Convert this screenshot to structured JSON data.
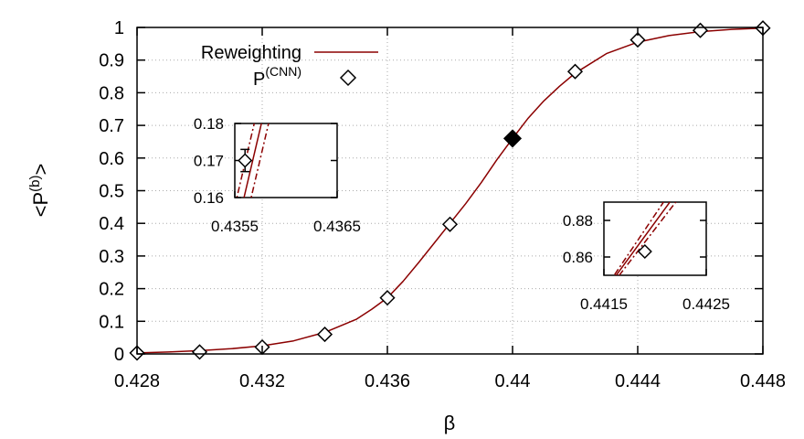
{
  "chart_data": {
    "type": "line",
    "title": "",
    "xlabel": "β",
    "ylabel_parts": {
      "lt": "<P",
      "sup": "(b)",
      "gt": ">"
    },
    "xlim": [
      0.428,
      0.448
    ],
    "ylim": [
      0,
      1
    ],
    "x_ticks": [
      {
        "value": 0.428,
        "label": "0.428"
      },
      {
        "value": 0.432,
        "label": "0.432"
      },
      {
        "value": 0.436,
        "label": "0.436"
      },
      {
        "value": 0.44,
        "label": "0.44"
      },
      {
        "value": 0.444,
        "label": "0.444"
      },
      {
        "value": 0.448,
        "label": "0.448"
      }
    ],
    "y_ticks": [
      {
        "value": 0,
        "label": "0"
      },
      {
        "value": 0.1,
        "label": "0.1"
      },
      {
        "value": 0.2,
        "label": "0.2"
      },
      {
        "value": 0.3,
        "label": "0.3"
      },
      {
        "value": 0.4,
        "label": "0.4"
      },
      {
        "value": 0.5,
        "label": "0.5"
      },
      {
        "value": 0.6,
        "label": "0.6"
      },
      {
        "value": 0.7,
        "label": "0.7"
      },
      {
        "value": 0.8,
        "label": "0.8"
      },
      {
        "value": 0.9,
        "label": "0.9"
      },
      {
        "value": 1,
        "label": "1"
      }
    ],
    "grid": true,
    "legend": {
      "placement": "top-left",
      "entries": [
        {
          "label": "Reweighting",
          "style": "line",
          "color": "#8b0000"
        },
        {
          "label_base": "P",
          "label_sup": "(CNN)",
          "style": "open-diamond",
          "color": "#000000"
        }
      ]
    },
    "series": [
      {
        "name": "Reweighting",
        "kind": "curve",
        "color": "#8b0000",
        "x": [
          0.428,
          0.429,
          0.43,
          0.431,
          0.432,
          0.433,
          0.434,
          0.435,
          0.4355,
          0.436,
          0.4365,
          0.437,
          0.4375,
          0.438,
          0.4385,
          0.439,
          0.4395,
          0.44,
          0.4405,
          0.441,
          0.4415,
          0.442,
          0.443,
          0.444,
          0.445,
          0.446,
          0.447,
          0.448
        ],
        "y": [
          0.003,
          0.006,
          0.01,
          0.016,
          0.025,
          0.04,
          0.066,
          0.106,
          0.137,
          0.172,
          0.222,
          0.28,
          0.34,
          0.4,
          0.46,
          0.525,
          0.595,
          0.66,
          0.722,
          0.775,
          0.82,
          0.86,
          0.92,
          0.955,
          0.975,
          0.987,
          0.994,
          0.998
        ]
      },
      {
        "name": "P(CNN)",
        "kind": "markers",
        "marker": "diamond",
        "x": [
          0.428,
          0.43,
          0.432,
          0.434,
          0.436,
          0.438,
          0.44,
          0.442,
          0.444,
          0.446,
          0.448
        ],
        "y": [
          0.003,
          0.006,
          0.021,
          0.06,
          0.172,
          0.397,
          0.66,
          0.865,
          0.962,
          0.991,
          0.998
        ],
        "filled": [
          false,
          false,
          false,
          false,
          false,
          false,
          true,
          false,
          false,
          false,
          false
        ]
      }
    ],
    "insets": [
      {
        "name": "left",
        "xlim": [
          0.4355,
          0.4365
        ],
        "ylim": [
          0.16,
          0.18
        ],
        "x_tick_labels": [
          "0.4355",
          "0.4365"
        ],
        "y_ticks": [
          {
            "value": 0.16,
            "label": "0.16"
          },
          {
            "value": 0.17,
            "label": "0.17"
          },
          {
            "value": 0.18,
            "label": "0.18"
          }
        ],
        "curves": [
          {
            "style": "solid",
            "points": [
              [
                0.43559,
                0.16
              ],
              [
                0.43576,
                0.18
              ]
            ]
          },
          {
            "style": "dashdot",
            "points": [
              [
                0.43552,
                0.16
              ],
              [
                0.43569,
                0.18
              ]
            ]
          },
          {
            "style": "dashdot",
            "points": [
              [
                0.43566,
                0.16
              ],
              [
                0.43583,
                0.18
              ]
            ]
          }
        ],
        "point": {
          "x": 0.4356,
          "y": 0.17,
          "err": 0.003
        }
      },
      {
        "name": "right",
        "xlim": [
          0.4415,
          0.4425
        ],
        "ylim": [
          0.85,
          0.89
        ],
        "x_tick_labels": [
          "0.4415",
          "0.4425"
        ],
        "y_ticks": [
          {
            "value": 0.86,
            "label": "0.86"
          },
          {
            "value": 0.88,
            "label": "0.88"
          }
        ],
        "curves": [
          {
            "style": "solid",
            "points": [
              [
                0.44162,
                0.85
              ],
              [
                0.442,
                0.879
              ]
            ]
          },
          {
            "style": "dashdot",
            "points": [
              [
                0.4416,
                0.85
              ],
              [
                0.44195,
                0.879
              ]
            ]
          },
          {
            "style": "dashdot",
            "points": [
              [
                0.44165,
                0.85
              ],
              [
                0.44205,
                0.879
              ]
            ]
          }
        ],
        "point": {
          "x": 0.4419,
          "y": 0.863,
          "err": 0.001
        }
      }
    ]
  },
  "colors": {
    "curve": "#8b0000",
    "marker": "#000000",
    "grid": "#aaaaaa"
  }
}
